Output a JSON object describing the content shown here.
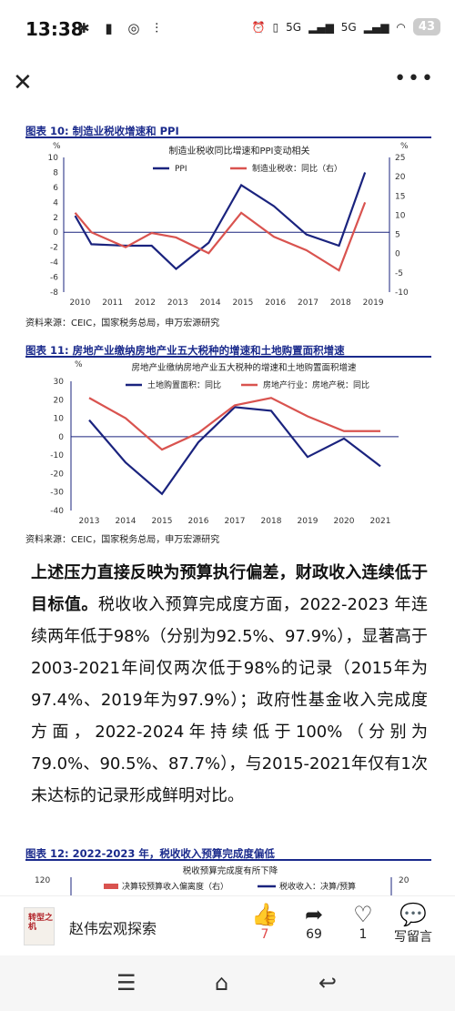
{
  "status": {
    "time": "13:38",
    "left_icons": "✱ ▮ ◎ ⫶",
    "net1": "5G",
    "net2": "5G",
    "battery": "43"
  },
  "topbar": {
    "close": "✕",
    "more": "•••"
  },
  "fig10": {
    "title": "图表 10:  制造业税收增速和 PPI",
    "chart_title": "制造业税收同比增速和PPI变动相关",
    "unit_left": "%",
    "unit_right": "%",
    "legend": [
      "PPI",
      "制造业税收：同比（右）"
    ],
    "source": "资料来源：CEIC，国家税务总局，申万宏源研究"
  },
  "fig11": {
    "title": "图表 11:  房地产业缴纳房地产业五大税种的增速和土地购置面积增速",
    "chart_title": "房地产业缴纳房地产业五大税种的增速和土地购置面积增速",
    "unit_left": "%",
    "legend": [
      "土地购置面积：同比",
      "房地产行业：房地产税：同比"
    ],
    "source": "资料来源：CEIC，国家税务总局，申万宏源研究"
  },
  "paragraph": {
    "bold": "上述压力直接反映为预算执行偏差，财政收入连续低于目标值。",
    "rest": "税收收入预算完成度方面，2022-2023 年连续两年低于98%（分别为92.5%、97.9%），显著高于2003-2021年间仅两次低于98%的记录（2015年为97.4%、2019年为97.9%）；政府性基金收入完成度方面，2022-2024年持续低于100%（分别为79.0%、90.5%、87.7%），与2015-2021年仅有1次未达标的记录形成鲜明对比。"
  },
  "fig12": {
    "title": "图表 12:  2022-2023 年，税收收入预算完成度偏低",
    "chart_title": "税收预算完成度有所下降",
    "left_tick": "120",
    "right_tick": "20",
    "legend": [
      "决算较预算收入偏离度（右）",
      "税收收入：决算/预算"
    ]
  },
  "bottom": {
    "author": "赵伟宏观探索",
    "book": "转型之机",
    "likes": "7",
    "shares": "69",
    "favs": "1",
    "comment": "写留言"
  },
  "chart_data": [
    {
      "type": "line",
      "title": "制造业税收同比增速和PPI变动相关",
      "x": [
        "2010",
        "2011",
        "2012",
        "2013",
        "2014",
        "2015",
        "2016",
        "2017",
        "2018",
        "2019"
      ],
      "ylim": [
        -8,
        10
      ],
      "y2lim": [
        -10,
        25
      ],
      "yticks": [
        -8,
        -6,
        -4,
        -2,
        0,
        2,
        4,
        6,
        8,
        10
      ],
      "y2ticks": [
        -10,
        -5,
        0,
        5,
        10,
        15,
        20,
        25
      ],
      "series": [
        {
          "name": "PPI",
          "axis": "left",
          "x": [
            2009.85,
            2010.35,
            2011.4,
            2012.2,
            2012.95,
            2013.95,
            2014.95,
            2015.95,
            2016.95,
            2017.95,
            2018.75
          ],
          "values": [
            2.2,
            -1.6,
            -1.8,
            -1.8,
            -4.9,
            -1.4,
            6.3,
            3.5,
            -0.3,
            -1.8,
            8.0
          ]
        },
        {
          "name": "制造业税收：同比（右）",
          "axis": "left",
          "x": [
            2009.85,
            2010.35,
            2011.4,
            2012.2,
            2012.95,
            2013.95,
            2014.95,
            2015.95,
            2016.95,
            2017.95,
            2018.75
          ],
          "values": [
            2.6,
            0.0,
            -2.0,
            -0.1,
            -0.7,
            -2.8,
            2.6,
            -0.6,
            -2.4,
            -5.1,
            4.0
          ]
        }
      ]
    },
    {
      "type": "line",
      "title": "房地产业缴纳房地产业五大税种的增速和土地购置面积增速",
      "x": [
        "2013",
        "2014",
        "2015",
        "2016",
        "2017",
        "2018",
        "2019",
        "2020",
        "2021"
      ],
      "ylim": [
        -40,
        30
      ],
      "yticks": [
        -40,
        -30,
        -20,
        -10,
        0,
        10,
        20,
        30
      ],
      "series": [
        {
          "name": "土地购置面积：同比",
          "values": [
            9,
            -14,
            -31,
            -3,
            16,
            14,
            -11,
            -1,
            -16
          ]
        },
        {
          "name": "房地产行业：房地产税：同比",
          "values": [
            21,
            10,
            -7,
            2,
            17,
            21,
            11,
            3,
            3
          ]
        }
      ]
    }
  ]
}
